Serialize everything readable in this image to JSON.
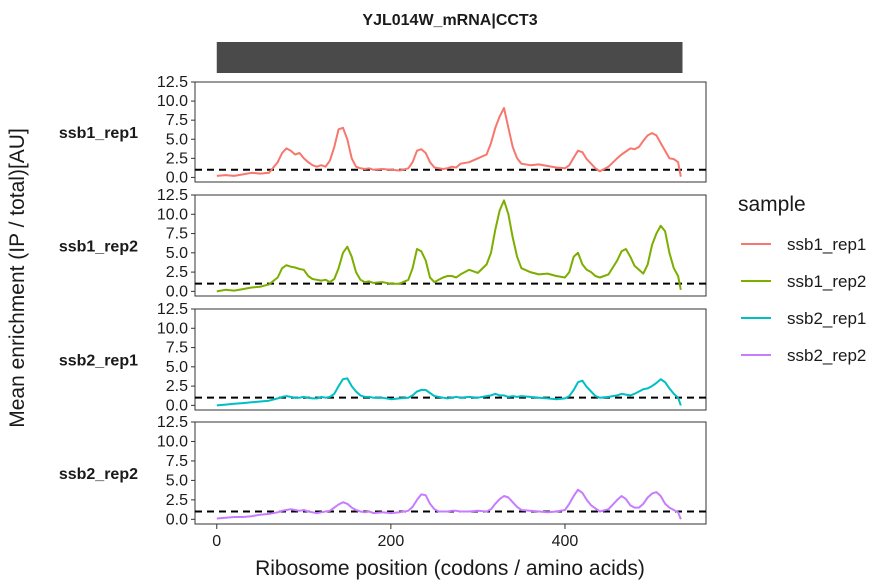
{
  "chart_data": {
    "type": "line",
    "title": "YJL014W_mRNA|CCT3",
    "xlabel": "Ribosome position (codons / amino acids)",
    "ylabel": "Mean enrichment (IP / total)[AU]",
    "xlim": [
      -25,
      562
    ],
    "ylim": [
      -0.6,
      12.5
    ],
    "xticks": [
      0,
      200,
      400
    ],
    "xtick_labels": [
      "0",
      "200",
      "400"
    ],
    "yticks": [
      0,
      2.5,
      5,
      7.5,
      10,
      12.5
    ],
    "ytick_labels": [
      "0.0",
      "2.5",
      "5.0",
      "7.5",
      "10.0",
      "12.5"
    ],
    "reference_line": 1.0,
    "cds_bar": {
      "start": 0,
      "end": 535
    },
    "grid": false,
    "legend_title": "sample",
    "legend_position": "right",
    "colors": {
      "ssb1_rep1": "#F8766D",
      "ssb1_rep2": "#7CAE00",
      "ssb2_rep1": "#00BFC4",
      "ssb2_rep2": "#C77CFF",
      "cds_bar": "#4a4a4a"
    },
    "x": [
      0,
      10,
      20,
      30,
      40,
      50,
      60,
      70,
      75,
      80,
      85,
      90,
      95,
      100,
      105,
      110,
      115,
      120,
      125,
      130,
      135,
      140,
      145,
      150,
      155,
      160,
      165,
      170,
      175,
      180,
      190,
      200,
      210,
      220,
      225,
      230,
      235,
      240,
      245,
      250,
      255,
      260,
      265,
      270,
      275,
      280,
      290,
      300,
      310,
      315,
      320,
      325,
      330,
      335,
      340,
      345,
      350,
      360,
      370,
      380,
      390,
      400,
      405,
      410,
      415,
      420,
      425,
      430,
      435,
      440,
      450,
      460,
      465,
      470,
      475,
      480,
      485,
      490,
      495,
      500,
      505,
      510,
      515,
      520,
      525,
      530,
      533
    ],
    "series": [
      {
        "name": "ssb1_rep1",
        "values": [
          0.2,
          0.3,
          0.2,
          0.4,
          0.6,
          0.5,
          0.6,
          2.0,
          3.2,
          3.8,
          3.5,
          3.0,
          3.2,
          2.5,
          2.0,
          1.6,
          1.4,
          1.6,
          1.4,
          2.2,
          4.0,
          6.3,
          6.5,
          5.0,
          2.5,
          1.4,
          1.2,
          1.1,
          1.2,
          1.0,
          1.1,
          1.0,
          0.9,
          1.2,
          2.0,
          3.5,
          3.7,
          3.2,
          2.0,
          1.3,
          1.2,
          1.1,
          1.2,
          1.4,
          1.3,
          1.8,
          2.0,
          2.5,
          3.0,
          4.5,
          6.5,
          8.0,
          9.1,
          6.5,
          4.0,
          2.5,
          1.8,
          1.6,
          1.7,
          1.5,
          1.3,
          1.2,
          1.6,
          2.6,
          3.5,
          3.3,
          2.4,
          1.8,
          1.2,
          0.8,
          1.4,
          2.5,
          3.0,
          3.4,
          3.8,
          3.7,
          4.0,
          4.8,
          5.5,
          5.8,
          5.5,
          4.5,
          3.5,
          2.5,
          2.4,
          2.0,
          0.1
        ]
      },
      {
        "name": "ssb1_rep2",
        "values": [
          0.0,
          0.2,
          0.1,
          0.3,
          0.5,
          0.6,
          0.9,
          1.8,
          3.0,
          3.4,
          3.2,
          3.1,
          2.9,
          2.8,
          2.0,
          1.6,
          1.5,
          1.4,
          1.5,
          1.2,
          1.6,
          3.0,
          5.0,
          5.8,
          4.5,
          2.5,
          1.5,
          1.2,
          1.3,
          1.1,
          1.2,
          1.0,
          1.0,
          1.5,
          3.0,
          5.5,
          5.2,
          4.0,
          1.8,
          1.2,
          1.5,
          1.8,
          2.0,
          2.0,
          1.8,
          2.2,
          2.8,
          2.4,
          3.5,
          5.0,
          8.0,
          10.5,
          11.8,
          10.0,
          7.0,
          4.5,
          3.0,
          2.5,
          2.2,
          2.3,
          2.0,
          1.8,
          2.5,
          4.5,
          5.0,
          3.5,
          2.8,
          2.5,
          2.0,
          1.8,
          2.2,
          4.0,
          5.2,
          5.5,
          4.5,
          3.3,
          2.8,
          2.3,
          3.5,
          6.0,
          7.5,
          8.5,
          7.8,
          5.0,
          3.0,
          2.0,
          0.2
        ]
      },
      {
        "name": "ssb2_rep1",
        "values": [
          0.0,
          0.1,
          0.2,
          0.3,
          0.4,
          0.5,
          0.6,
          0.9,
          1.1,
          1.2,
          1.1,
          1.0,
          1.0,
          1.1,
          1.0,
          0.9,
          0.9,
          1.1,
          1.0,
          1.1,
          1.5,
          2.5,
          3.4,
          3.5,
          2.5,
          1.8,
          1.3,
          1.1,
          1.1,
          1.0,
          1.0,
          0.8,
          0.9,
          1.0,
          1.3,
          1.8,
          2.0,
          2.0,
          1.6,
          1.2,
          1.1,
          1.0,
          0.9,
          1.0,
          1.1,
          1.0,
          1.1,
          1.0,
          1.2,
          1.3,
          1.5,
          1.3,
          1.3,
          1.1,
          1.2,
          1.1,
          1.2,
          1.1,
          1.0,
          0.9,
          0.8,
          0.9,
          1.2,
          2.0,
          3.0,
          3.2,
          2.4,
          1.8,
          1.2,
          1.0,
          1.1,
          1.3,
          1.5,
          1.4,
          1.3,
          1.5,
          1.8,
          2.1,
          2.2,
          2.5,
          2.9,
          3.4,
          3.0,
          2.2,
          1.5,
          1.0,
          0.0
        ]
      },
      {
        "name": "ssb2_rep2",
        "values": [
          0.1,
          0.2,
          0.3,
          0.3,
          0.4,
          0.6,
          0.7,
          0.9,
          1.1,
          1.2,
          1.3,
          1.2,
          1.1,
          1.2,
          1.0,
          0.9,
          0.8,
          0.9,
          1.0,
          1.1,
          1.5,
          1.9,
          2.2,
          2.0,
          1.5,
          1.2,
          1.0,
          0.9,
          1.0,
          0.8,
          0.9,
          0.8,
          0.9,
          1.1,
          1.6,
          2.5,
          3.2,
          3.1,
          2.0,
          1.3,
          1.0,
          1.0,
          1.0,
          1.1,
          1.1,
          1.0,
          1.0,
          1.1,
          1.0,
          1.3,
          2.0,
          2.6,
          3.0,
          2.8,
          2.2,
          1.6,
          1.2,
          1.1,
          1.0,
          0.9,
          1.0,
          1.2,
          2.0,
          3.0,
          3.8,
          3.4,
          2.5,
          1.8,
          1.4,
          1.0,
          1.3,
          2.5,
          3.0,
          2.6,
          1.8,
          1.5,
          1.5,
          2.0,
          2.8,
          3.3,
          3.5,
          3.0,
          2.0,
          1.5,
          1.2,
          0.9,
          0.0
        ]
      }
    ]
  }
}
